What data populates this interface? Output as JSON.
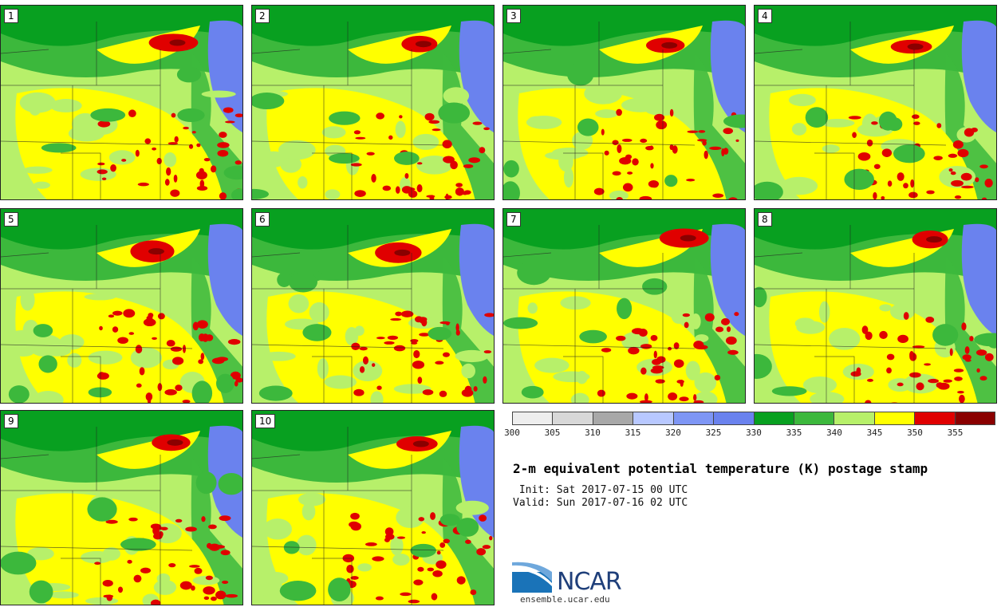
{
  "panels": [
    {
      "label": "1"
    },
    {
      "label": "2"
    },
    {
      "label": "3"
    },
    {
      "label": "4"
    },
    {
      "label": "5"
    },
    {
      "label": "6"
    },
    {
      "label": "7"
    },
    {
      "label": "8"
    },
    {
      "label": "9"
    },
    {
      "label": "10"
    }
  ],
  "legend": {
    "colors": [
      "#eeeeee",
      "#d8d8d8",
      "#a8a8a8",
      "#b8c8ff",
      "#7e96f5",
      "#6a82ee",
      "#08a020",
      "#3cb83c",
      "#b7f06a",
      "#ffff00",
      "#e00000",
      "#8a0000"
    ],
    "ticks": [
      "300",
      "305",
      "310",
      "315",
      "320",
      "325",
      "330",
      "335",
      "340",
      "345",
      "350",
      "355"
    ]
  },
  "title": "2-m equivalent potential temperature (K) postage stamp",
  "init": " Init: Sat 2017-07-15 00 UTC",
  "valid": "Valid: Sun 2017-07-16 02 UTC",
  "logo": {
    "text": "NCAR",
    "url": "ensemble.ucar.edu"
  }
}
